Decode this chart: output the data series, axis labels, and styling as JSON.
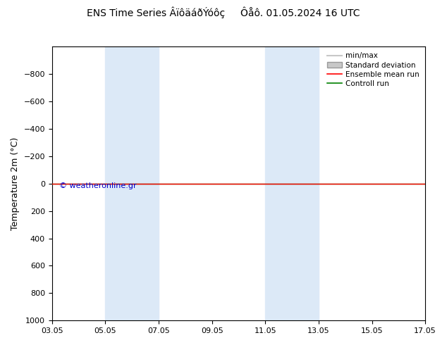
{
  "title": "ENS Time Series ÂïôäáðÝóôç     Ôåô. 01.05.2024 16 UTC",
  "ylabel": "Temperature 2m (°C)",
  "xlabel": "",
  "ylim_top": -1000,
  "ylim_bottom": 1000,
  "yticks": [
    -800,
    -600,
    -400,
    -200,
    0,
    200,
    400,
    600,
    800,
    1000
  ],
  "bg_color": "#ffffff",
  "plot_bg_color": "#ffffff",
  "shaded_columns": [
    {
      "xstart": 1,
      "xend": 2
    },
    {
      "xstart": 4,
      "xend": 5
    }
  ],
  "shaded_color": "#dce9f7",
  "green_line_y": 0,
  "red_line_y": 0,
  "watermark": "© weatheronline.gr",
  "watermark_color": "#0000cc",
  "legend_items": [
    {
      "label": "min/max",
      "color": "#c8c8c8",
      "type": "line"
    },
    {
      "label": "Standard deviation",
      "color": "#c8c8c8",
      "type": "fill"
    },
    {
      "label": "Ensemble mean run",
      "color": "#ff0000",
      "type": "line"
    },
    {
      "label": "Controll run",
      "color": "#008000",
      "type": "line"
    }
  ],
  "xtick_labels": [
    "03.05",
    "05.05",
    "07.05",
    "09.05",
    "11.05",
    "13.05",
    "15.05",
    "17.05"
  ],
  "xlim": [
    0,
    7
  ]
}
